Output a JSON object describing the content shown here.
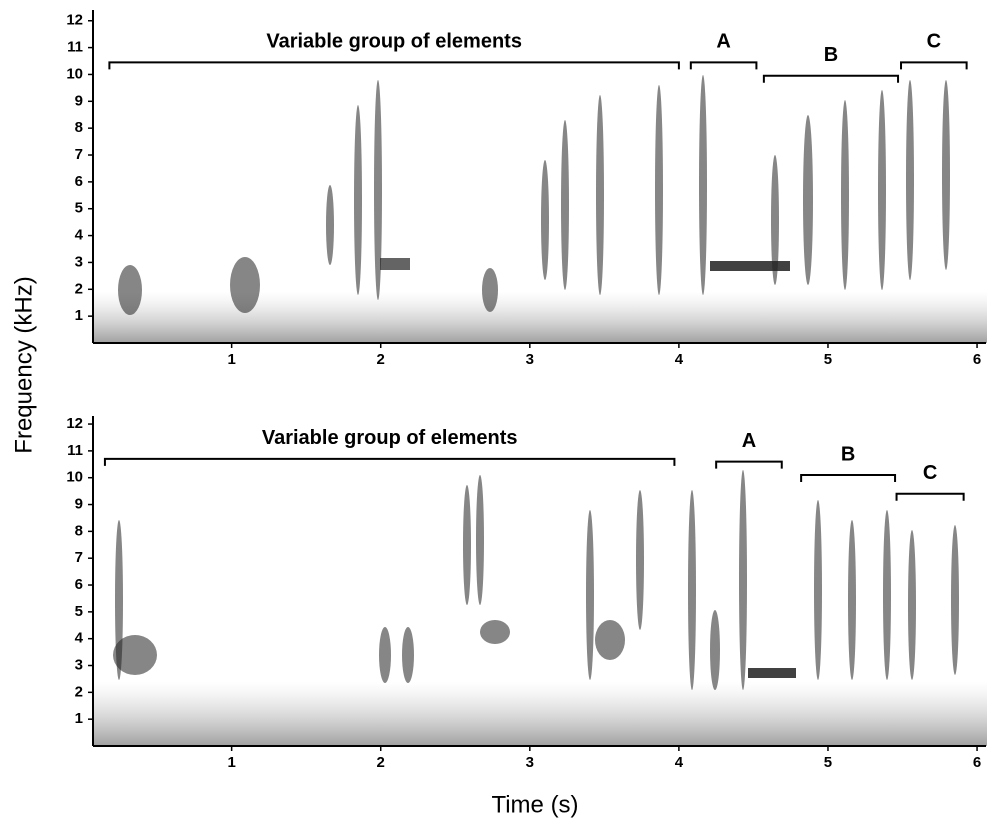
{
  "ylabel": "Frequency (kHz)",
  "xlabel": "Time (s)",
  "chart_data": [
    {
      "type": "spectrogram",
      "xlim": [
        0.07,
        6.06
      ],
      "ylim": [
        0,
        12.4
      ],
      "xticks": [
        1,
        2,
        3,
        4,
        5,
        6
      ],
      "yticks": [
        1,
        2,
        3,
        4,
        5,
        6,
        7,
        8,
        9,
        10,
        11,
        12
      ],
      "annotations": [
        {
          "text": "Variable group of elements",
          "x": [
            0.18,
            4.0
          ],
          "y": 10.45
        },
        {
          "text": "A",
          "x": [
            4.08,
            4.52
          ],
          "y": 10.45
        },
        {
          "text": "B",
          "x": [
            4.57,
            5.47
          ],
          "y": 9.95
        },
        {
          "text": "C",
          "x": [
            5.49,
            5.93
          ],
          "y": 10.45
        }
      ]
    },
    {
      "type": "spectrogram",
      "xlim": [
        0.07,
        6.06
      ],
      "ylim": [
        0,
        12.3
      ],
      "xticks": [
        1,
        2,
        3,
        4,
        5,
        6
      ],
      "yticks": [
        1,
        2,
        3,
        4,
        5,
        6,
        7,
        8,
        9,
        10,
        11,
        12
      ],
      "annotations": [
        {
          "text": "Variable group of elements",
          "x": [
            0.15,
            3.97
          ],
          "y": 10.7
        },
        {
          "text": "A",
          "x": [
            4.25,
            4.69
          ],
          "y": 10.6
        },
        {
          "text": "B",
          "x": [
            4.82,
            5.45
          ],
          "y": 10.1
        },
        {
          "text": "C",
          "x": [
            5.46,
            5.91
          ],
          "y": 9.4
        }
      ]
    }
  ]
}
